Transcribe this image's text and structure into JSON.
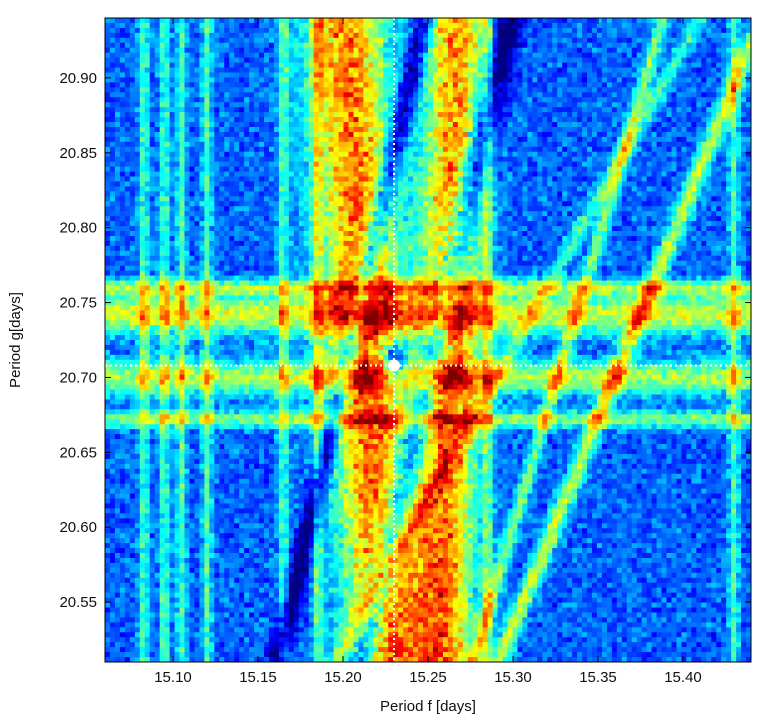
{
  "chart_data": {
    "type": "heatmap",
    "title": "",
    "xlabel": "Period f [days]",
    "ylabel": "Period g[days]",
    "xlim": [
      15.06,
      15.44
    ],
    "ylim": [
      20.51,
      20.94
    ],
    "xticks": [
      15.1,
      15.15,
      15.2,
      15.25,
      15.3,
      15.35,
      15.4
    ],
    "xtick_labels": [
      "15.10",
      "15.15",
      "15.20",
      "15.25",
      "15.30",
      "15.35",
      "15.40"
    ],
    "yticks": [
      20.55,
      20.6,
      20.65,
      20.7,
      20.75,
      20.8,
      20.85,
      20.9
    ],
    "ytick_labels": [
      "20.55",
      "20.60",
      "20.65",
      "20.70",
      "20.75",
      "20.80",
      "20.85",
      "20.90"
    ],
    "colormap": "jet",
    "grid": false,
    "highlight_point": {
      "x": 15.23,
      "y": 20.708,
      "color": "#ffffff"
    },
    "reference_lines": {
      "x": 15.23,
      "y": 20.708,
      "style": "dotted",
      "color": "#ffffff"
    }
  }
}
